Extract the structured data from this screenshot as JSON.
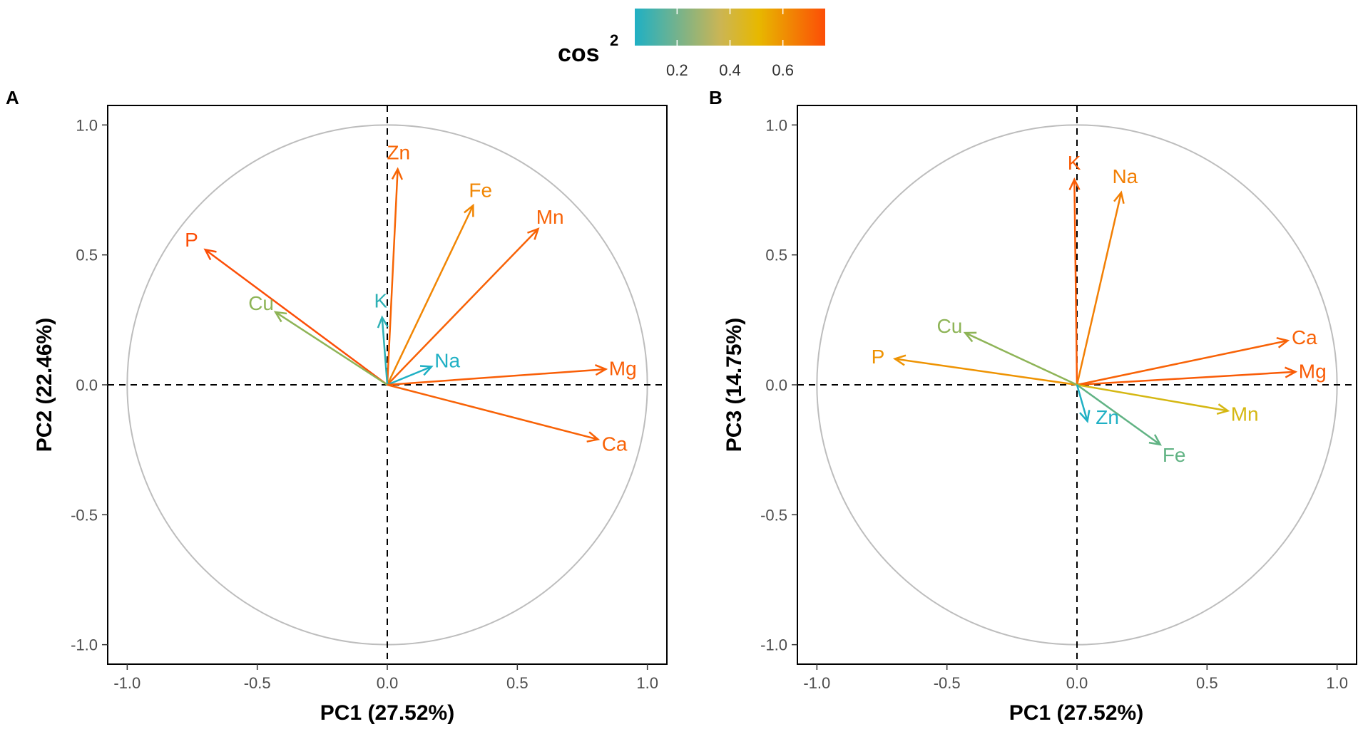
{
  "legend": {
    "title": "cos",
    "title_sup": "2",
    "ticks": [
      "0.2",
      "0.4",
      "0.6"
    ],
    "tick_values": [
      0.2,
      0.4,
      0.6
    ],
    "range": [
      0.04,
      0.76
    ],
    "gradient_colors": [
      "#1FB0C4",
      "#E7B800",
      "#FC4E07"
    ]
  },
  "colors": {
    "low": "#1FB0C4",
    "mid": "#E7B800",
    "high": "#FC4E07",
    "circle": "#BDBDBD",
    "reference_line": "#000000"
  },
  "chart_data": [
    {
      "type": "pca_variable_correlation",
      "panel": "A",
      "xlabel": "PC1 (27.52%)",
      "ylabel": "PC2 (22.46%)",
      "xlim": [
        -1.0,
        1.0
      ],
      "ylim": [
        -1.0,
        1.0
      ],
      "x_ticks": [
        -1.0,
        -0.5,
        0.0,
        0.5,
        1.0
      ],
      "y_ticks": [
        -1.0,
        -0.5,
        0.0,
        0.5,
        1.0
      ],
      "x_tick_labels": [
        "-1.0",
        "-0.5",
        "0.0",
        "0.5",
        "1.0"
      ],
      "y_tick_labels": [
        "-1.0",
        "-0.5",
        "0.0",
        "0.5",
        "1.0"
      ],
      "variables": [
        {
          "name": "Zn",
          "x": 0.04,
          "y": 0.83,
          "cos2": 0.69
        },
        {
          "name": "Fe",
          "x": 0.33,
          "y": 0.69,
          "cos2": 0.59
        },
        {
          "name": "Mn",
          "x": 0.58,
          "y": 0.6,
          "cos2": 0.7
        },
        {
          "name": "P",
          "x": -0.7,
          "y": 0.52,
          "cos2": 0.76
        },
        {
          "name": "K",
          "x": -0.02,
          "y": 0.26,
          "cos2": 0.07
        },
        {
          "name": "Cu",
          "x": -0.43,
          "y": 0.28,
          "cos2": 0.26
        },
        {
          "name": "Na",
          "x": 0.17,
          "y": 0.07,
          "cos2": 0.03
        },
        {
          "name": "Mg",
          "x": 0.84,
          "y": 0.06,
          "cos2": 0.71
        },
        {
          "name": "Ca",
          "x": 0.81,
          "y": -0.21,
          "cos2": 0.7
        }
      ]
    },
    {
      "type": "pca_variable_correlation",
      "panel": "B",
      "xlabel": "PC1 (27.52%)",
      "ylabel": "PC3 (14.75%)",
      "xlim": [
        -1.0,
        1.0
      ],
      "ylim": [
        -1.0,
        1.0
      ],
      "x_ticks": [
        -1.0,
        -0.5,
        0.0,
        0.5,
        1.0
      ],
      "y_ticks": [
        -1.0,
        -0.5,
        0.0,
        0.5,
        1.0
      ],
      "x_tick_labels": [
        "-1.0",
        "-0.5",
        "0.0",
        "0.5",
        "1.0"
      ],
      "y_tick_labels": [
        "-1.0",
        "-0.5",
        "0.0",
        "0.5",
        "1.0"
      ],
      "variables": [
        {
          "name": "K",
          "x": -0.01,
          "y": 0.79,
          "cos2": 0.72
        },
        {
          "name": "Na",
          "x": 0.17,
          "y": 0.74,
          "cos2": 0.61
        },
        {
          "name": "Ca",
          "x": 0.81,
          "y": 0.17,
          "cos2": 0.7
        },
        {
          "name": "Mg",
          "x": 0.84,
          "y": 0.05,
          "cos2": 0.72
        },
        {
          "name": "P",
          "x": -0.7,
          "y": 0.1,
          "cos2": 0.55
        },
        {
          "name": "Cu",
          "x": -0.43,
          "y": 0.2,
          "cos2": 0.26
        },
        {
          "name": "Mn",
          "x": 0.58,
          "y": -0.1,
          "cos2": 0.4
        },
        {
          "name": "Fe",
          "x": 0.32,
          "y": -0.23,
          "cos2": 0.17
        },
        {
          "name": "Zn",
          "x": 0.04,
          "y": -0.14,
          "cos2": 0.03
        }
      ]
    }
  ]
}
